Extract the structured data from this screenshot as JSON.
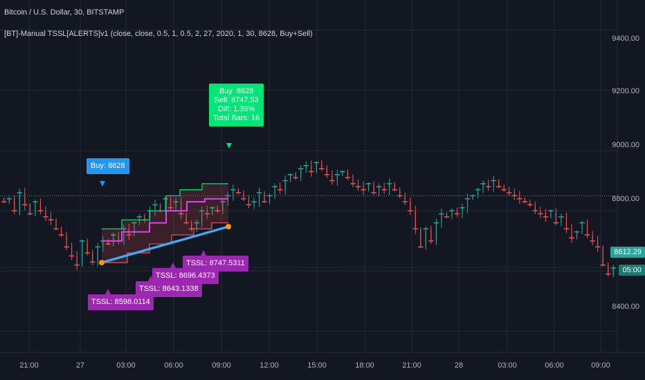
{
  "header": {
    "symbol": "Bitcoin / U.S. Dollar, 30, BITSTAMP",
    "indicator": "[BT]-Manual TSSL[ALERTS]v1 (close, close, 0.5, 1, 0.5, 2, 27, 2020, 1, 30, 8628, Buy+Sell)"
  },
  "price_axis": {
    "ticks": [
      "9400.00",
      "9200.00",
      "9000.00",
      "8800.00",
      "8400.00"
    ]
  },
  "time_axis": {
    "ticks": [
      "21:00",
      "27",
      "03:00",
      "06:00",
      "09:00",
      "12:00",
      "15:00",
      "18:00",
      "21:00",
      "28",
      "03:00",
      "06:00",
      "09:00"
    ]
  },
  "current": {
    "price": "8612.29",
    "countdown": "05:00"
  },
  "labels": {
    "buy": "Buy: 8628",
    "summary": [
      "Buy: 8628",
      "Sell: 8747.53",
      "Diff: 1.39%",
      "Total Bars: 16"
    ],
    "tssl1": "TSSL: 8598.0114",
    "tssl2": "TSSL: 8643.1338",
    "tssl3": "TSSL: 8696.4373",
    "tssl4": "TSSL: 8747.5311"
  },
  "colors": {
    "background": "#131722",
    "up": "#26a69a",
    "down": "#ef5350",
    "buy_label": "#2196f3",
    "sell_label": "#00e676",
    "tssl_label": "#9c27b0",
    "trade_line": "#42a5f5",
    "entry_line": "#26a69a"
  },
  "chart_data": {
    "type": "candlestick",
    "x": [
      "21:00",
      "27",
      "03:00",
      "06:00",
      "09:00",
      "12:00",
      "15:00",
      "18:00",
      "21:00",
      "28",
      "03:00",
      "06:00",
      "09:00"
    ],
    "ylim": [
      8330,
      9500
    ],
    "entry_level": 8850,
    "trade": {
      "buy": 8628,
      "sell": 8747.53,
      "diff": "1.39%",
      "total_bars": 16
    },
    "closes": [
      8830,
      8840,
      8800,
      8860,
      8820,
      8790,
      8830,
      8800,
      8780,
      8770,
      8740,
      8720,
      8680,
      8650,
      8620,
      8700,
      8660,
      8630,
      8680,
      8700,
      8690,
      8720,
      8700,
      8740,
      8720,
      8760,
      8780,
      8770,
      8800,
      8820,
      8800,
      8840,
      8810,
      8830,
      8790,
      8760,
      8740,
      8760,
      8800,
      8790,
      8810,
      8800,
      8830,
      8850,
      8870,
      8860,
      8840,
      8820,
      8830,
      8860,
      8830,
      8850,
      8880,
      8870,
      8900,
      8920,
      8910,
      8940,
      8950,
      8930,
      8960,
      8940,
      8920,
      8900,
      8920,
      8930,
      8910,
      8890,
      8880,
      8870,
      8890,
      8860,
      8880,
      8870,
      8890,
      8870,
      8850,
      8830,
      8800,
      8740,
      8680,
      8740,
      8700,
      8760,
      8790,
      8780,
      8800,
      8790,
      8810,
      8840,
      8850,
      8870,
      8890,
      8880,
      8900,
      8880,
      8870,
      8860,
      8850,
      8840,
      8830,
      8820,
      8800,
      8790,
      8780,
      8800,
      8760,
      8780,
      8740,
      8710,
      8730,
      8760,
      8720,
      8700,
      8680,
      8620,
      8590,
      8610
    ]
  }
}
